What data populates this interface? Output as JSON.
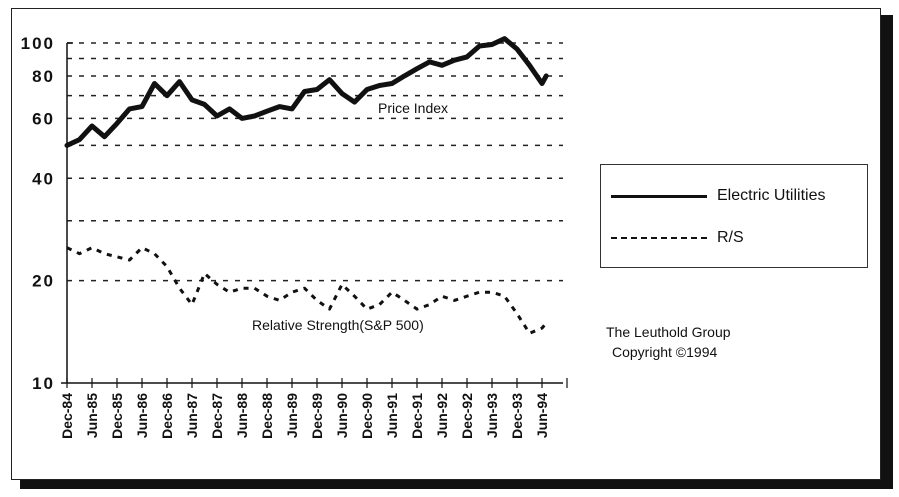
{
  "chart_data": {
    "type": "line",
    "title": "",
    "xlabel": "",
    "ylabel": "",
    "yscale": "log",
    "ylim": [
      10,
      100
    ],
    "grid": true,
    "legend_position": "right",
    "y_ticks": [
      "100",
      "80",
      "60",
      "40",
      "20",
      "10"
    ],
    "y_gridlines": [
      100,
      90,
      80,
      70,
      60,
      50,
      40,
      30,
      20
    ],
    "x_ticks": [
      "Dec-84",
      "Jun-85",
      "Dec-85",
      "Jun-86",
      "Dec-86",
      "Jun-87",
      "Dec-87",
      "Jun-88",
      "Dec-88",
      "Jun-89",
      "Dec-89",
      "Jun-90",
      "Dec-90",
      "Jun-91",
      "Dec-91",
      "Jun-92",
      "Dec-92",
      "Jun-93",
      "Dec-93",
      "Jun-94"
    ],
    "series": [
      {
        "name": "Electric Utilities",
        "label": "Price Index",
        "style": "solid-thick",
        "x": [
          "Dec-84",
          "Mar-85",
          "Jun-85",
          "Sep-85",
          "Dec-85",
          "Mar-86",
          "Jun-86",
          "Sep-86",
          "Dec-86",
          "Mar-87",
          "Jun-87",
          "Sep-87",
          "Dec-87",
          "Mar-88",
          "Jun-88",
          "Sep-88",
          "Dec-88",
          "Mar-89",
          "Jun-89",
          "Sep-89",
          "Dec-89",
          "Mar-90",
          "Jun-90",
          "Sep-90",
          "Dec-90",
          "Mar-91",
          "Jun-91",
          "Sep-91",
          "Dec-91",
          "Mar-92",
          "Jun-92",
          "Sep-92",
          "Dec-92",
          "Mar-93",
          "Jun-93",
          "Sep-93",
          "Dec-93",
          "Mar-94",
          "Jun-94",
          "Jul-94"
        ],
        "values": [
          50,
          52,
          57,
          53,
          58,
          64,
          65,
          76,
          70,
          77,
          68,
          66,
          61,
          64,
          60,
          61,
          63,
          65,
          64,
          72,
          73,
          78,
          71,
          67,
          73,
          75,
          76,
          80,
          84,
          88,
          86,
          89,
          91,
          98,
          99,
          103,
          96,
          86,
          76,
          80
        ]
      },
      {
        "name": "R/S",
        "label": "Relative Strength(S&P 500)",
        "style": "dashed",
        "x": [
          "Dec-84",
          "Mar-85",
          "Jun-85",
          "Sep-85",
          "Dec-85",
          "Mar-86",
          "Jun-86",
          "Sep-86",
          "Dec-86",
          "Mar-87",
          "Jun-87",
          "Sep-87",
          "Dec-87",
          "Mar-88",
          "Jun-88",
          "Sep-88",
          "Dec-88",
          "Mar-89",
          "Jun-89",
          "Sep-89",
          "Dec-89",
          "Mar-90",
          "Jun-90",
          "Sep-90",
          "Dec-90",
          "Mar-91",
          "Jun-91",
          "Sep-91",
          "Dec-91",
          "Mar-92",
          "Jun-92",
          "Sep-92",
          "Dec-92",
          "Mar-93",
          "Jun-93",
          "Sep-93",
          "Dec-93",
          "Mar-94",
          "Jun-94",
          "Jul-94"
        ],
        "values": [
          25,
          24,
          25,
          24,
          23.5,
          23,
          25,
          24,
          22,
          19,
          17,
          21,
          19.5,
          18.5,
          19,
          19,
          18,
          17.5,
          18.5,
          19,
          17.5,
          16.5,
          19.5,
          18,
          16.5,
          17,
          18.5,
          17.5,
          16.5,
          17,
          18,
          17.5,
          18,
          18.5,
          18.5,
          18,
          16,
          14,
          14.5,
          15
        ]
      }
    ],
    "annotations": [
      "Price Index",
      "Relative Strength(S&P 500)"
    ]
  },
  "legend": {
    "items": [
      {
        "label": "Electric Utilities",
        "style": "solid"
      },
      {
        "label": "R/S",
        "style": "dashed"
      }
    ]
  },
  "credit": {
    "line1": "The Leuthold Group",
    "line2": "Copyright  ©1994"
  },
  "colors": {
    "line": "#111111",
    "background": "#ffffff",
    "shadow": "#111111"
  }
}
